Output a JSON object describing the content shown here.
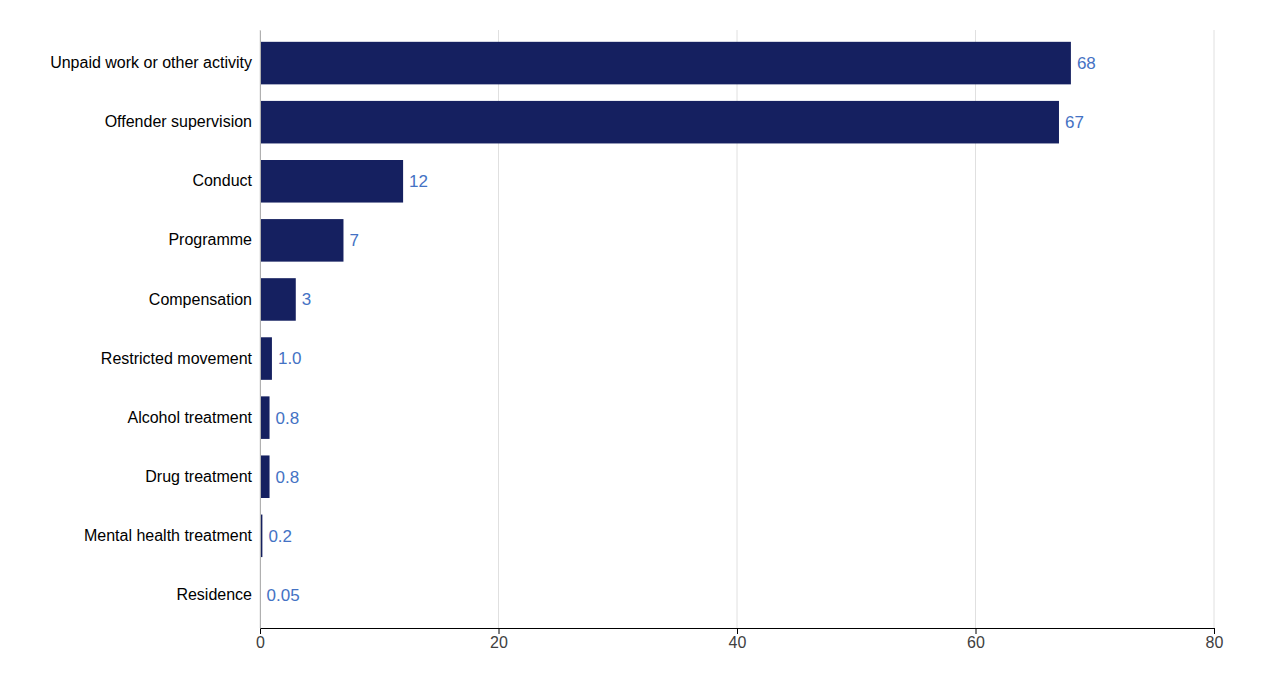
{
  "chart_data": {
    "type": "bar",
    "orientation": "horizontal",
    "categories": [
      "Residence",
      "Mental health treatment",
      "Drug treatment",
      "Alcohol treatment",
      "Restricted movement",
      "Compensation",
      "Programme",
      "Conduct",
      "Offender supervision",
      "Unpaid work or other activity"
    ],
    "values": [
      0.05,
      0.2,
      0.8,
      0.8,
      1.0,
      3,
      7,
      12,
      67,
      68
    ],
    "value_labels": [
      "0.05",
      "0.2",
      "0.8",
      "0.8",
      "1.0",
      "3",
      "7",
      "12",
      "67",
      "68"
    ],
    "color": "#152060",
    "xlim": [
      0,
      80
    ],
    "xticks": [
      0,
      20,
      40,
      60,
      80
    ],
    "grid": true,
    "data_labels": true
  }
}
